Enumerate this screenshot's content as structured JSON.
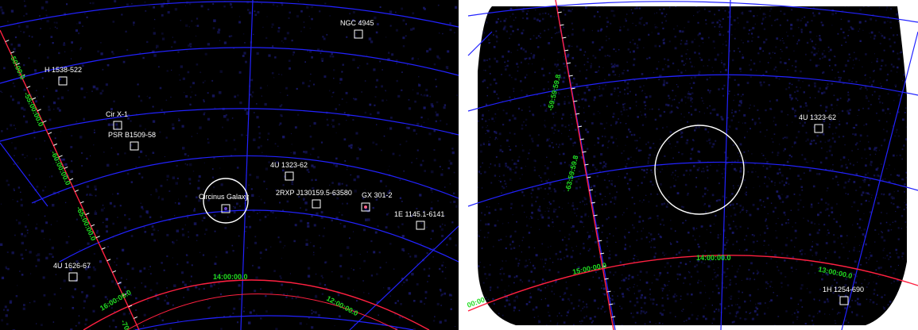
{
  "colors": {
    "grid_line": "#2222ff",
    "axis_line": "#ff2040",
    "grid_label": "#22dd22",
    "source_marker": "#ffffff",
    "sky_background": "#000000",
    "noise": "#1a1a6e"
  },
  "left_panel": {
    "sources": [
      {
        "label": "NGC 4945"
      },
      {
        "label": "H 1538-522"
      },
      {
        "label": "Cir X-1"
      },
      {
        "label": "PSR B1509-58"
      },
      {
        "label": "4U 1323-62"
      },
      {
        "label": "Circinus Galaxy"
      },
      {
        "label": "2RXP J130159.5-63580"
      },
      {
        "label": "GX 301-2"
      },
      {
        "label": "1E 1145.1-6141"
      },
      {
        "label": "4U 1626-67"
      }
    ],
    "dec_labels": [
      "-50:00:0",
      "-55:00:00.0",
      "-60:00:00.0",
      "-65:00:00.0",
      "-70"
    ],
    "ra_labels": [
      "16:00:00.0",
      "14:00:00.0",
      "12:00:00.0"
    ],
    "target_circle": {
      "label": ""
    }
  },
  "right_panel": {
    "sources": [
      {
        "label": "4U 1323-62"
      },
      {
        "label": "1H 1254-690"
      }
    ],
    "dec_labels": [
      "-59:59:59.8",
      "-63:59:59.8"
    ],
    "ra_labels": [
      "15:00:00.0",
      "14:00:00.0",
      "13:00:00.0",
      "00:00"
    ]
  }
}
